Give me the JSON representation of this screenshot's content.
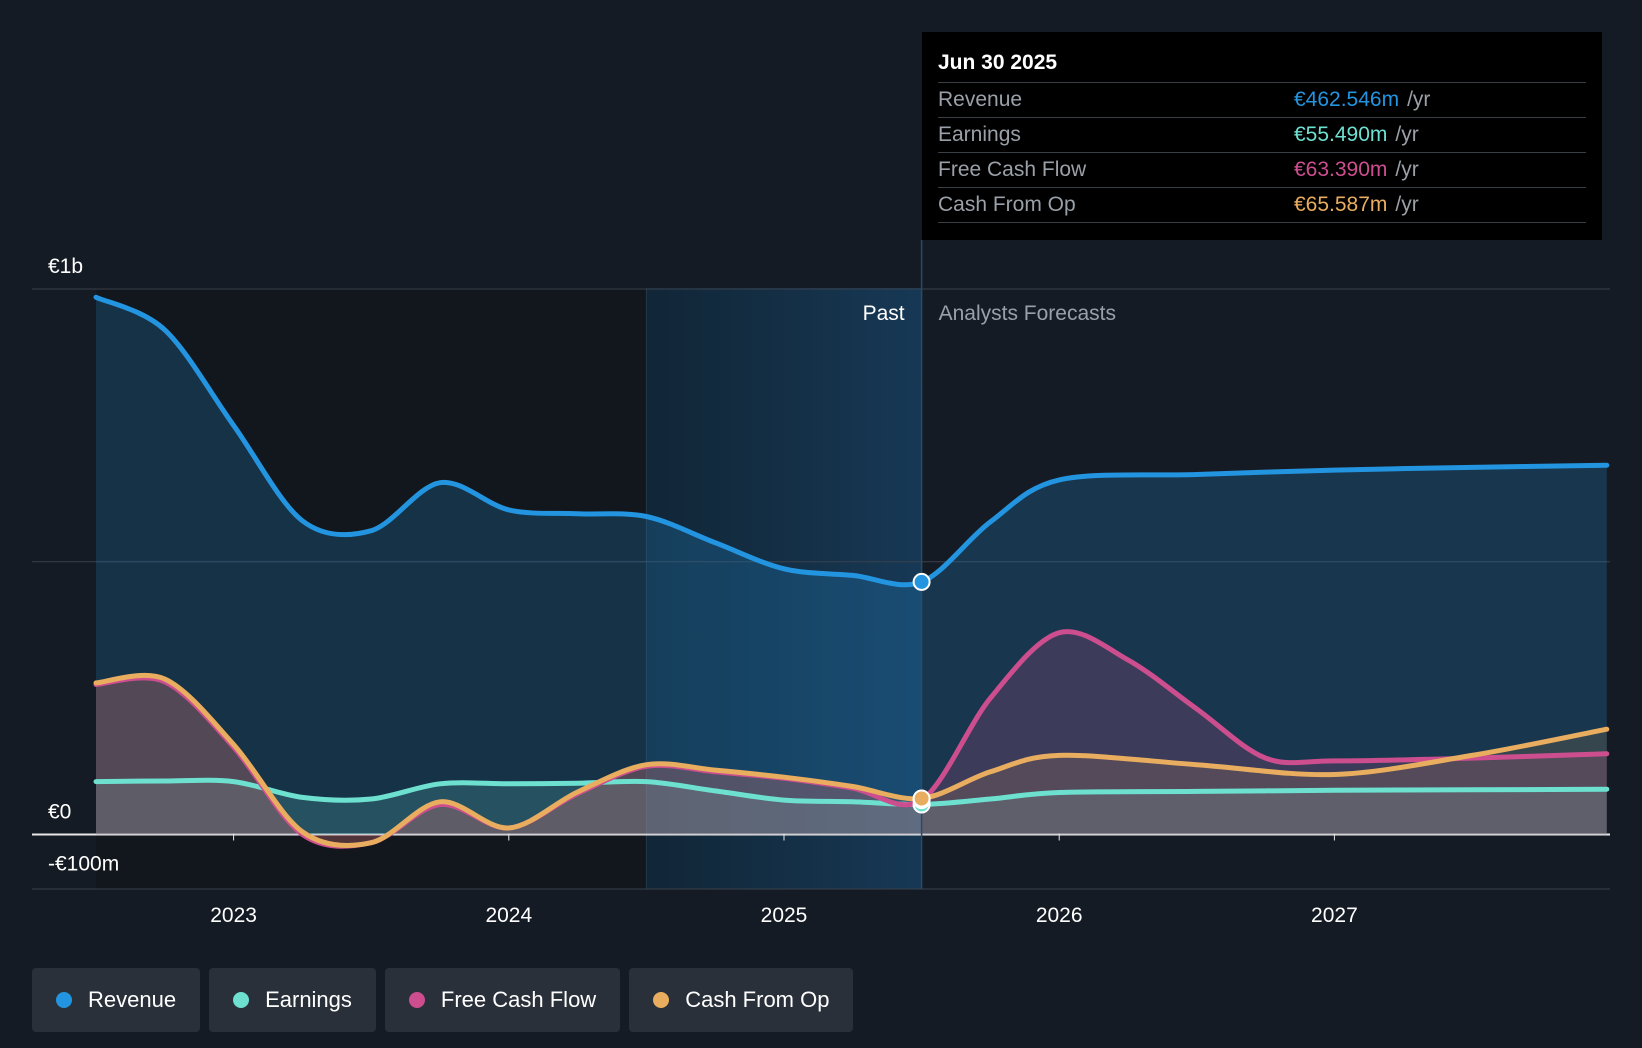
{
  "colors": {
    "background": "#151b24",
    "revenue": "#2394df",
    "earnings": "#6de0d0",
    "free_cash_flow": "#cd4e8f",
    "cash_from_op": "#e8ad5f",
    "grid": "#39414c",
    "zero_line": "#e8e8e8",
    "past_highlight": "#1b3a55"
  },
  "labels": {
    "past": "Past",
    "forecast": "Analysts Forecasts"
  },
  "tooltip": {
    "date": "Jun 30 2025",
    "rows": [
      {
        "label": "Revenue",
        "value": "€462.546m",
        "unit": "/yr",
        "color": "#2394df"
      },
      {
        "label": "Earnings",
        "value": "€55.490m",
        "unit": "/yr",
        "color": "#6de0d0"
      },
      {
        "label": "Free Cash Flow",
        "value": "€63.390m",
        "unit": "/yr",
        "color": "#cd4e8f"
      },
      {
        "label": "Cash From Op",
        "value": "€65.587m",
        "unit": "/yr",
        "color": "#e8ad5f"
      }
    ]
  },
  "legend": [
    {
      "label": "Revenue",
      "color": "#2394df"
    },
    {
      "label": "Earnings",
      "color": "#6de0d0"
    },
    {
      "label": "Free Cash Flow",
      "color": "#cd4e8f"
    },
    {
      "label": "Cash From Op",
      "color": "#e8ad5f"
    }
  ],
  "chart_data": {
    "type": "area",
    "title": "",
    "xlabel": "",
    "ylabel": "",
    "currency": "EUR",
    "unit": "€m",
    "ylim": [
      -100,
      1000
    ],
    "xlim": [
      2022.5,
      2027.99
    ],
    "y_tick_labels": [
      {
        "value": 1000,
        "label": "€1b"
      },
      {
        "value": 0,
        "label": "€0"
      },
      {
        "value": -100,
        "label": "-€100m"
      }
    ],
    "gridlines": [
      1000,
      500,
      0,
      -100
    ],
    "x_ticks": [
      {
        "value": 2023,
        "label": "2023"
      },
      {
        "value": 2024,
        "label": "2024"
      },
      {
        "value": 2025,
        "label": "2025"
      },
      {
        "value": 2026,
        "label": "2026"
      },
      {
        "value": 2027,
        "label": "2027"
      }
    ],
    "past_end": 2025.5,
    "highlight_start": 2024.5,
    "cursor": 2025.5,
    "series": [
      {
        "name": "Revenue",
        "key": "revenue",
        "points": [
          [
            2022.5,
            985
          ],
          [
            2022.75,
            925
          ],
          [
            2023.0,
            750
          ],
          [
            2023.25,
            575
          ],
          [
            2023.5,
            557
          ],
          [
            2023.75,
            645
          ],
          [
            2024.0,
            595
          ],
          [
            2024.25,
            588
          ],
          [
            2024.5,
            583
          ],
          [
            2024.75,
            535
          ],
          [
            2025.0,
            487
          ],
          [
            2025.25,
            475
          ],
          [
            2025.5,
            463
          ],
          [
            2025.75,
            573
          ],
          [
            2026.0,
            650
          ],
          [
            2026.5,
            660
          ],
          [
            2027.0,
            668
          ],
          [
            2027.5,
            673
          ],
          [
            2027.99,
            677
          ]
        ]
      },
      {
        "name": "Earnings",
        "key": "earnings",
        "points": [
          [
            2022.5,
            97
          ],
          [
            2022.75,
            98
          ],
          [
            2023.0,
            97
          ],
          [
            2023.25,
            68
          ],
          [
            2023.5,
            65
          ],
          [
            2023.75,
            93
          ],
          [
            2024.0,
            93
          ],
          [
            2024.25,
            94
          ],
          [
            2024.5,
            97
          ],
          [
            2024.75,
            80
          ],
          [
            2025.0,
            63
          ],
          [
            2025.25,
            60
          ],
          [
            2025.5,
            55
          ],
          [
            2025.75,
            65
          ],
          [
            2026.0,
            77
          ],
          [
            2026.5,
            79
          ],
          [
            2027.0,
            81
          ],
          [
            2027.5,
            82
          ],
          [
            2027.99,
            83
          ]
        ]
      },
      {
        "name": "Free Cash Flow",
        "key": "free_cash_flow",
        "points": [
          [
            2022.5,
            275
          ],
          [
            2022.75,
            280
          ],
          [
            2023.0,
            160
          ],
          [
            2023.25,
            0
          ],
          [
            2023.5,
            -15
          ],
          [
            2023.75,
            55
          ],
          [
            2024.0,
            12
          ],
          [
            2024.25,
            75
          ],
          [
            2024.5,
            125
          ],
          [
            2024.75,
            115
          ],
          [
            2025.0,
            103
          ],
          [
            2025.25,
            85
          ],
          [
            2025.5,
            63
          ],
          [
            2025.75,
            250
          ],
          [
            2026.0,
            370
          ],
          [
            2026.25,
            320
          ],
          [
            2026.5,
            230
          ],
          [
            2026.75,
            140
          ],
          [
            2027.0,
            135
          ],
          [
            2027.5,
            140
          ],
          [
            2027.99,
            148
          ]
        ]
      },
      {
        "name": "Cash From Op",
        "key": "cash_from_op",
        "points": [
          [
            2022.5,
            278
          ],
          [
            2022.75,
            285
          ],
          [
            2023.0,
            165
          ],
          [
            2023.25,
            5
          ],
          [
            2023.5,
            -15
          ],
          [
            2023.75,
            60
          ],
          [
            2024.0,
            12
          ],
          [
            2024.25,
            78
          ],
          [
            2024.5,
            128
          ],
          [
            2024.75,
            118
          ],
          [
            2025.0,
            105
          ],
          [
            2025.25,
            88
          ],
          [
            2025.5,
            66
          ],
          [
            2025.75,
            115
          ],
          [
            2026.0,
            145
          ],
          [
            2026.5,
            128
          ],
          [
            2027.0,
            110
          ],
          [
            2027.5,
            145
          ],
          [
            2027.99,
            193
          ]
        ]
      }
    ]
  }
}
